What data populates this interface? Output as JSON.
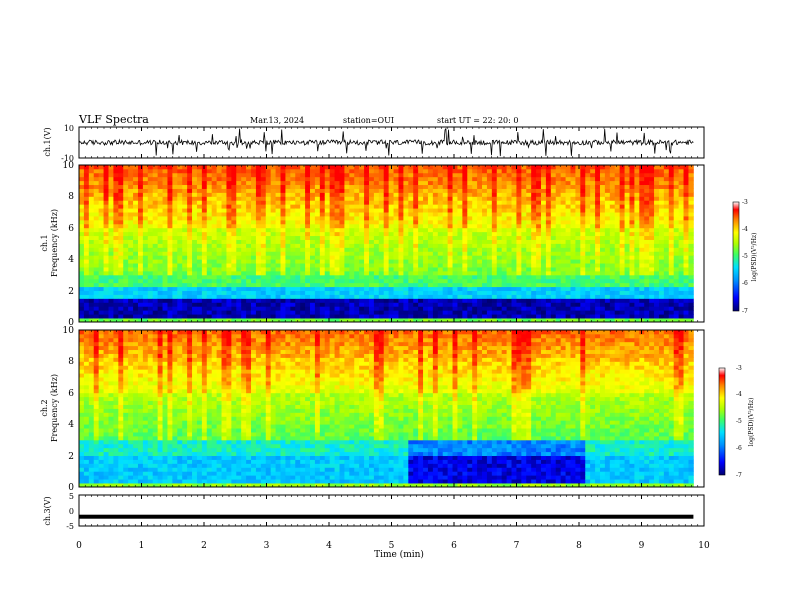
{
  "header": {
    "title": "VLF Spectra",
    "date": "Mar.13, 2024",
    "station": "station=OUI",
    "start": "start UT =  22: 20: 0"
  },
  "colors": {
    "trace": "#000000",
    "colormap": [
      "#00007f",
      "#0000ff",
      "#0080ff",
      "#00ffff",
      "#40ff40",
      "#c0ff00",
      "#ffff00",
      "#ff8000",
      "#ff0000",
      "#ffffff"
    ]
  },
  "chart_data": [
    {
      "type": "line",
      "ylabel": "ch.1(V)",
      "ylim": [
        -10,
        10
      ],
      "y_ticks": [
        "10",
        "-10"
      ],
      "description_of_signal": "noisy trace around 0 with impulsive spikes",
      "baseline": 0
    },
    {
      "type": "heatmap",
      "ylabel_line1": "ch.1",
      "ylabel_line2": "Frequency (kHz)",
      "ylim": [
        0,
        10
      ],
      "y_ticks": [
        "0",
        "2",
        "4",
        "6",
        "8",
        "10"
      ],
      "colorbar": {
        "label": "log(PSD)(V²/Hz)",
        "range": [
          -7,
          -3
        ],
        "ticks": [
          "-3",
          "-4",
          "-5",
          "-6",
          "-7"
        ]
      }
    },
    {
      "type": "heatmap",
      "ylabel_line1": "ch.2",
      "ylabel_line2": "Frequency (kHz)",
      "ylim": [
        0,
        10
      ],
      "y_ticks": [
        "0",
        "2",
        "4",
        "6",
        "8",
        "10"
      ],
      "colorbar": {
        "label": "log(PSD)(V²/Hz)",
        "range": [
          -7,
          -3
        ],
        "ticks": [
          "-3",
          "-4",
          "-5",
          "-6",
          "-7"
        ]
      }
    },
    {
      "type": "line",
      "ylabel": "ch.3(V)",
      "ylim": [
        -5,
        5
      ],
      "y_ticks": [
        "5",
        "0",
        "-5"
      ],
      "values_constant": -2
    }
  ],
  "x_axis": {
    "label": "Time (min)",
    "range": [
      0,
      10
    ],
    "ticks": [
      "0",
      "1",
      "2",
      "3",
      "4",
      "5",
      "6",
      "7",
      "8",
      "9",
      "10"
    ],
    "data_end": 9.83
  }
}
